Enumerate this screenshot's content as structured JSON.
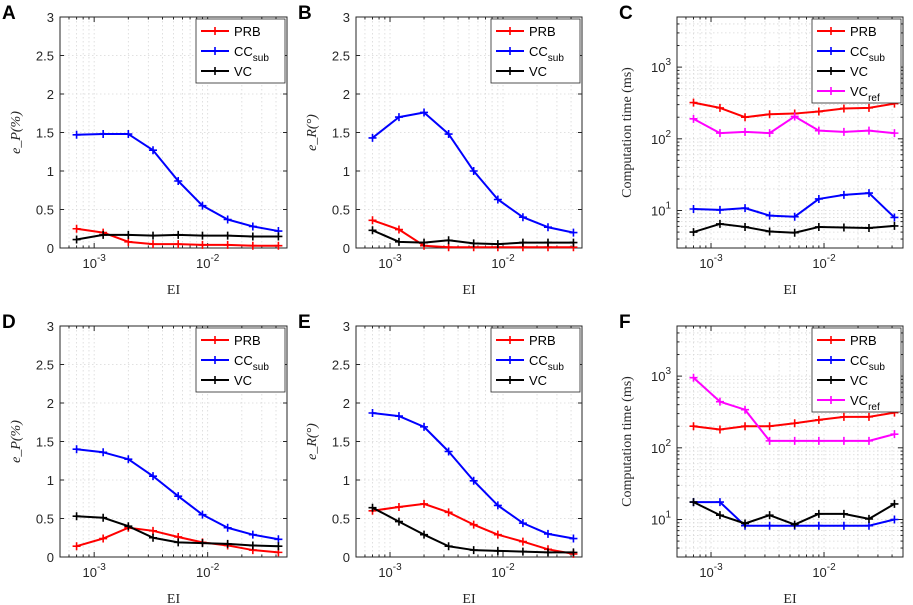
{
  "chart_data": [
    {
      "id": "A",
      "type": "line",
      "panel_label": "A",
      "title": "",
      "xlabel": "EI",
      "ylabel_math": "e_P(%)",
      "yscale": "linear",
      "xlim": [
        0.0005,
        0.05
      ],
      "ylim": [
        0,
        3
      ],
      "yticks": [
        0,
        0.5,
        1,
        1.5,
        2,
        2.5,
        3
      ],
      "ytick_labels": [
        "0",
        "0.5",
        "1",
        "1.5",
        "2",
        "2.5",
        "3"
      ],
      "xticks": [
        0.001,
        0.01
      ],
      "xtick_labels": [
        {
          "base": "10",
          "exp": "-3"
        },
        {
          "base": "10",
          "exp": "-2"
        }
      ],
      "legend_position": "top-right",
      "grid": true,
      "x": [
        0.0007,
        0.0012,
        0.002,
        0.0033,
        0.0055,
        0.009,
        0.015,
        0.025,
        0.042
      ],
      "series": [
        {
          "name": "PRB",
          "sub": "",
          "color": "#ff0000",
          "values": [
            0.25,
            0.2,
            0.08,
            0.05,
            0.05,
            0.04,
            0.04,
            0.03,
            0.03
          ]
        },
        {
          "name": "CC",
          "sub": "sub",
          "color": "#0000ff",
          "values": [
            1.47,
            1.48,
            1.48,
            1.27,
            0.87,
            0.55,
            0.37,
            0.28,
            0.22
          ]
        },
        {
          "name": "VC",
          "sub": "",
          "color": "#000000",
          "values": [
            0.11,
            0.17,
            0.17,
            0.16,
            0.17,
            0.16,
            0.16,
            0.15,
            0.15
          ]
        }
      ]
    },
    {
      "id": "B",
      "type": "line",
      "panel_label": "B",
      "title": "",
      "xlabel": "EI",
      "ylabel_math": "e_R(°)",
      "yscale": "linear",
      "xlim": [
        0.0005,
        0.05
      ],
      "ylim": [
        0,
        3
      ],
      "yticks": [
        0,
        0.5,
        1,
        1.5,
        2,
        2.5,
        3
      ],
      "ytick_labels": [
        "0",
        "0.5",
        "1",
        "1.5",
        "2",
        "2.5",
        "3"
      ],
      "xticks": [
        0.001,
        0.01
      ],
      "xtick_labels": [
        {
          "base": "10",
          "exp": "-3"
        },
        {
          "base": "10",
          "exp": "-2"
        }
      ],
      "legend_position": "top-right",
      "grid": true,
      "x": [
        0.0007,
        0.0012,
        0.002,
        0.0033,
        0.0055,
        0.009,
        0.015,
        0.025,
        0.042
      ],
      "series": [
        {
          "name": "PRB",
          "sub": "",
          "color": "#ff0000",
          "values": [
            0.36,
            0.24,
            0.03,
            0.01,
            0.01,
            0.01,
            0.01,
            0.01,
            0.01
          ]
        },
        {
          "name": "CC",
          "sub": "sub",
          "color": "#0000ff",
          "values": [
            1.43,
            1.7,
            1.76,
            1.48,
            1.0,
            0.63,
            0.4,
            0.27,
            0.2
          ]
        },
        {
          "name": "VC",
          "sub": "",
          "color": "#000000",
          "values": [
            0.23,
            0.08,
            0.07,
            0.1,
            0.06,
            0.05,
            0.07,
            0.07,
            0.07
          ]
        }
      ]
    },
    {
      "id": "C",
      "type": "line",
      "panel_label": "C",
      "title": "",
      "xlabel": "EI",
      "ylabel_text": "Computation time (ms)",
      "yscale": "log",
      "xlim": [
        0.0005,
        0.05
      ],
      "ylim": [
        3,
        5000
      ],
      "yticks": [
        10,
        100,
        1000
      ],
      "ytick_labels": [
        {
          "base": "10",
          "exp": "1"
        },
        {
          "base": "10",
          "exp": "2"
        },
        {
          "base": "10",
          "exp": "3"
        }
      ],
      "xticks": [
        0.001,
        0.01
      ],
      "xtick_labels": [
        {
          "base": "10",
          "exp": "-3"
        },
        {
          "base": "10",
          "exp": "-2"
        }
      ],
      "legend_position": "top-right",
      "grid": true,
      "x": [
        0.0007,
        0.0012,
        0.002,
        0.0033,
        0.0055,
        0.009,
        0.015,
        0.025,
        0.042
      ],
      "series": [
        {
          "name": "PRB",
          "sub": "",
          "color": "#ff0000",
          "values": [
            320,
            270,
            200,
            220,
            225,
            240,
            265,
            270,
            310
          ]
        },
        {
          "name": "CC",
          "sub": "sub",
          "color": "#0000ff",
          "values": [
            10.5,
            10.2,
            10.8,
            8.5,
            8.2,
            14.5,
            16.5,
            17.5,
            8.0
          ]
        },
        {
          "name": "VC",
          "sub": "",
          "color": "#000000",
          "values": [
            5.0,
            6.5,
            5.9,
            5.1,
            4.9,
            5.9,
            5.8,
            5.7,
            6.1
          ]
        },
        {
          "name": "VC",
          "sub": "ref",
          "color": "#ff00ff",
          "values": [
            190,
            120,
            125,
            120,
            205,
            130,
            125,
            130,
            120
          ]
        }
      ]
    },
    {
      "id": "D",
      "type": "line",
      "panel_label": "D",
      "title": "",
      "xlabel": "EI",
      "ylabel_math": "e_P(%)",
      "yscale": "linear",
      "xlim": [
        0.0005,
        0.05
      ],
      "ylim": [
        0,
        3
      ],
      "yticks": [
        0,
        0.5,
        1,
        1.5,
        2,
        2.5,
        3
      ],
      "ytick_labels": [
        "0",
        "0.5",
        "1",
        "1.5",
        "2",
        "2.5",
        "3"
      ],
      "xticks": [
        0.001,
        0.01
      ],
      "xtick_labels": [
        {
          "base": "10",
          "exp": "-3"
        },
        {
          "base": "10",
          "exp": "-2"
        }
      ],
      "legend_position": "top-right",
      "grid": true,
      "x": [
        0.0007,
        0.0012,
        0.002,
        0.0033,
        0.0055,
        0.009,
        0.015,
        0.025,
        0.042
      ],
      "series": [
        {
          "name": "PRB",
          "sub": "",
          "color": "#ff0000",
          "values": [
            0.14,
            0.24,
            0.38,
            0.34,
            0.26,
            0.19,
            0.15,
            0.09,
            0.06
          ]
        },
        {
          "name": "CC",
          "sub": "sub",
          "color": "#0000ff",
          "values": [
            1.4,
            1.36,
            1.27,
            1.05,
            0.79,
            0.55,
            0.38,
            0.29,
            0.23
          ]
        },
        {
          "name": "VC",
          "sub": "",
          "color": "#000000",
          "values": [
            0.53,
            0.51,
            0.4,
            0.25,
            0.19,
            0.18,
            0.17,
            0.15,
            0.14
          ]
        }
      ]
    },
    {
      "id": "E",
      "type": "line",
      "panel_label": "E",
      "title": "",
      "xlabel": "EI",
      "ylabel_math": "e_R(°)",
      "yscale": "linear",
      "xlim": [
        0.0005,
        0.05
      ],
      "ylim": [
        0,
        3
      ],
      "yticks": [
        0,
        0.5,
        1,
        1.5,
        2,
        2.5,
        3
      ],
      "ytick_labels": [
        "0",
        "0.5",
        "1",
        "1.5",
        "2",
        "2.5",
        "3"
      ],
      "xticks": [
        0.001,
        0.01
      ],
      "xtick_labels": [
        {
          "base": "10",
          "exp": "-3"
        },
        {
          "base": "10",
          "exp": "-2"
        }
      ],
      "legend_position": "top-right",
      "grid": true,
      "x": [
        0.0007,
        0.0012,
        0.002,
        0.0033,
        0.0055,
        0.009,
        0.015,
        0.025,
        0.042
      ],
      "series": [
        {
          "name": "PRB",
          "sub": "",
          "color": "#ff0000",
          "values": [
            0.6,
            0.65,
            0.69,
            0.58,
            0.42,
            0.29,
            0.2,
            0.1,
            0.04
          ]
        },
        {
          "name": "CC",
          "sub": "sub",
          "color": "#0000ff",
          "values": [
            1.87,
            1.83,
            1.69,
            1.37,
            0.99,
            0.67,
            0.44,
            0.3,
            0.24
          ]
        },
        {
          "name": "VC",
          "sub": "",
          "color": "#000000",
          "values": [
            0.64,
            0.46,
            0.29,
            0.14,
            0.09,
            0.08,
            0.07,
            0.06,
            0.06
          ]
        }
      ]
    },
    {
      "id": "F",
      "type": "line",
      "panel_label": "F",
      "title": "",
      "xlabel": "EI",
      "ylabel_text": "Computation time (ms)",
      "yscale": "log",
      "xlim": [
        0.0005,
        0.05
      ],
      "ylim": [
        3,
        5000
      ],
      "yticks": [
        10,
        100,
        1000
      ],
      "ytick_labels": [
        {
          "base": "10",
          "exp": "1"
        },
        {
          "base": "10",
          "exp": "2"
        },
        {
          "base": "10",
          "exp": "3"
        }
      ],
      "xticks": [
        0.001,
        0.01
      ],
      "xtick_labels": [
        {
          "base": "10",
          "exp": "-3"
        },
        {
          "base": "10",
          "exp": "-2"
        }
      ],
      "legend_position": "top-right",
      "grid": true,
      "x": [
        0.0007,
        0.0012,
        0.002,
        0.0033,
        0.0055,
        0.009,
        0.015,
        0.025,
        0.042
      ],
      "series": [
        {
          "name": "PRB",
          "sub": "",
          "color": "#ff0000",
          "values": [
            200,
            180,
            200,
            200,
            220,
            245,
            270,
            270,
            310
          ]
        },
        {
          "name": "CC",
          "sub": "sub",
          "color": "#0000ff",
          "values": [
            17.5,
            17.5,
            8.2,
            8.2,
            8.2,
            8.2,
            8.2,
            8.2,
            10
          ]
        },
        {
          "name": "VC",
          "sub": "",
          "color": "#000000",
          "values": [
            17.5,
            11.5,
            8.8,
            11.5,
            8.5,
            12,
            12,
            10.2,
            16.5
          ]
        },
        {
          "name": "VC",
          "sub": "ref",
          "color": "#ff00ff",
          "values": [
            950,
            440,
            340,
            125,
            125,
            125,
            125,
            125,
            155
          ]
        }
      ]
    }
  ]
}
